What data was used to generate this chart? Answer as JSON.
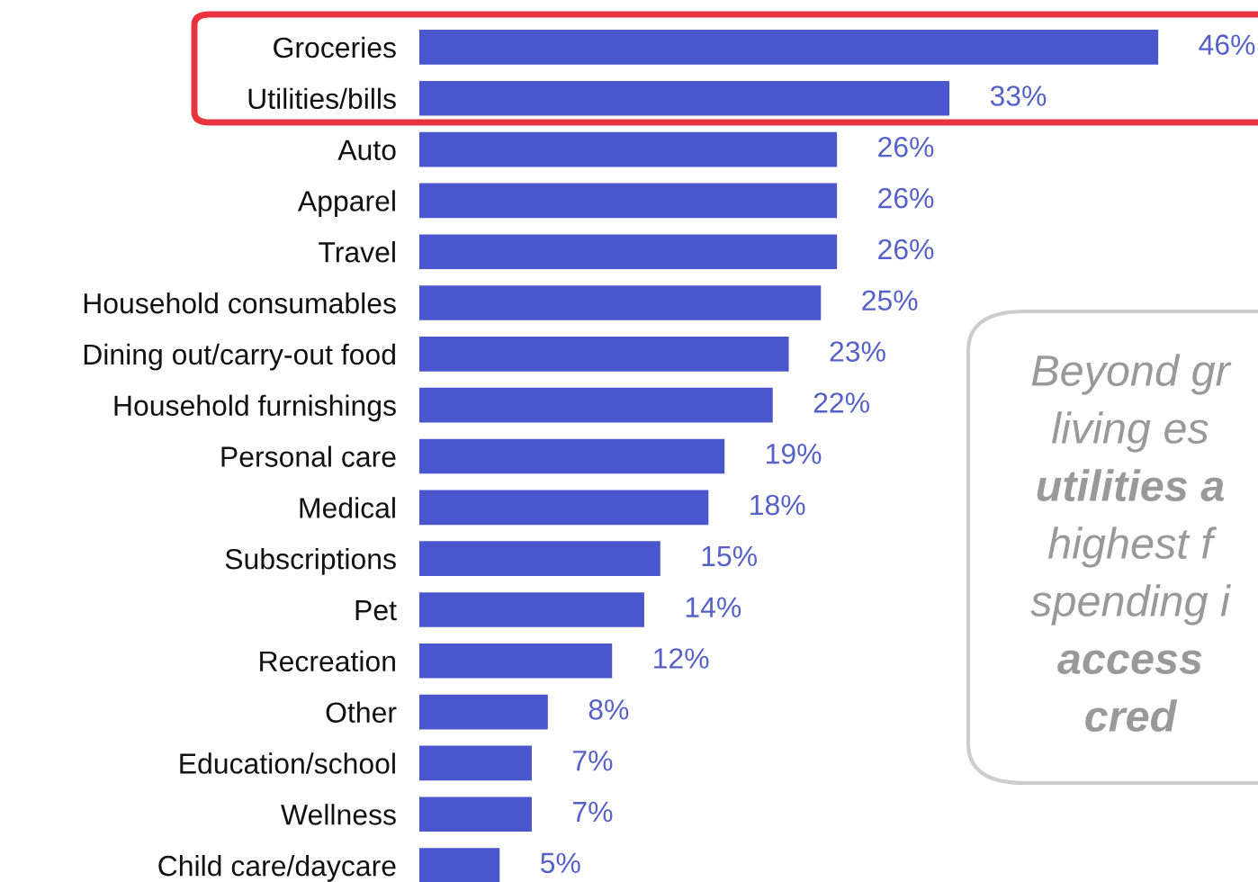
{
  "chart_data": {
    "type": "bar",
    "orientation": "horizontal",
    "color": "#4a56cd",
    "categories": [
      "Groceries",
      "Utilities/bills",
      "Auto",
      "Apparel",
      "Travel",
      "Household consumables",
      "Dining out/carry-out food",
      "Household furnishings",
      "Personal care",
      "Medical",
      "Subscriptions",
      "Pet",
      "Recreation",
      "Other",
      "Education/school",
      "Wellness",
      "Child care/daycare"
    ],
    "values": [
      46,
      33,
      26,
      26,
      26,
      25,
      23,
      22,
      19,
      18,
      15,
      14,
      12,
      8,
      7,
      7,
      5
    ],
    "value_labels": [
      "46%",
      "33%",
      "26%",
      "26%",
      "26%",
      "25%",
      "23%",
      "22%",
      "19%",
      "18%",
      "15%",
      "14%",
      "12%",
      "8%",
      "7%",
      "7%",
      "5%"
    ],
    "annotations": [
      "Beyond gr",
      "living es",
      "utilities a",
      "highest f",
      "spending i",
      "access",
      "cred"
    ],
    "grid": false,
    "legend": false
  }
}
